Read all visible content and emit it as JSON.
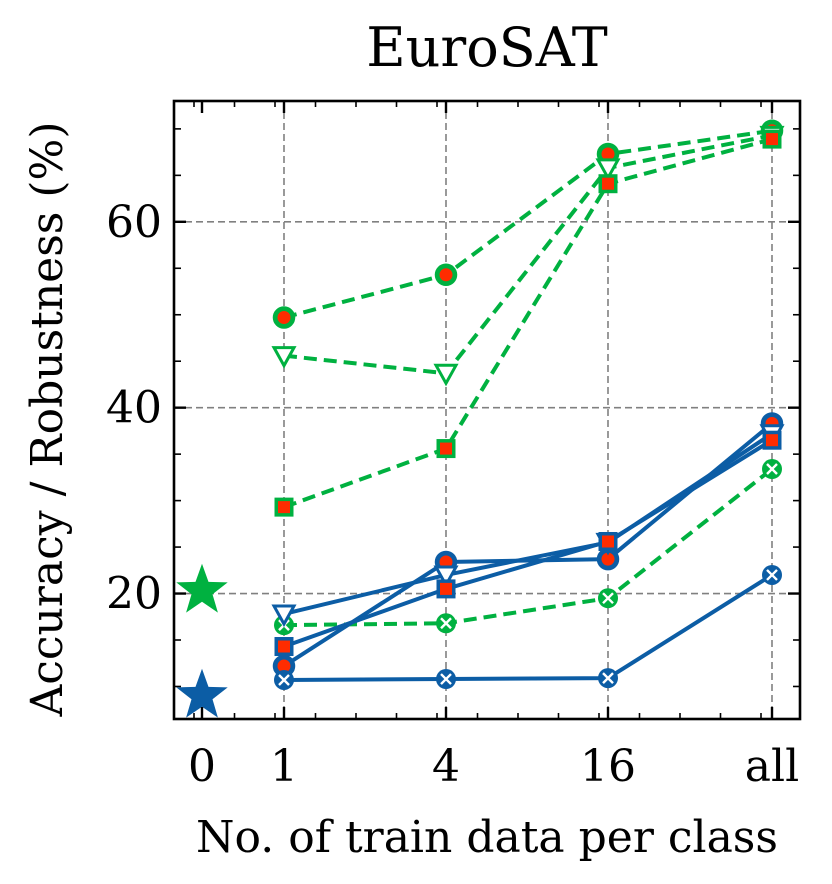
{
  "chart_data": {
    "type": "line",
    "title": "EuroSAT",
    "xlabel": "No. of train data per class",
    "ylabel": "Accuracy / Robustness (%)",
    "categories": [
      "0",
      "1",
      "4",
      "16",
      "all"
    ],
    "ylim": [
      6.5,
      73
    ],
    "yticks": [
      20,
      40,
      60
    ],
    "grid": true,
    "legend": "none",
    "colors": {
      "green": "#00b140",
      "blue": "#0c5da5",
      "red_fill": "#ff2c00"
    },
    "zero_shot": [
      {
        "name": "zero-shot green",
        "x": "0",
        "y": 20.3,
        "marker": "star",
        "color": "#00b140"
      },
      {
        "name": "zero-shot blue",
        "x": "0",
        "y": 9.0,
        "marker": "star",
        "color": "#0c5da5"
      }
    ],
    "series": [
      {
        "name": "green circle",
        "group": "green",
        "linestyle": "dashed",
        "marker": "circle",
        "x": [
          "1",
          "4",
          "16",
          "all"
        ],
        "values": [
          49.7,
          54.3,
          67.3,
          69.8
        ]
      },
      {
        "name": "green triangle",
        "group": "green",
        "linestyle": "dashed",
        "marker": "triangle",
        "x": [
          "1",
          "4",
          "16",
          "all"
        ],
        "values": [
          45.6,
          43.7,
          65.8,
          69.3
        ]
      },
      {
        "name": "green square",
        "group": "green",
        "linestyle": "dashed",
        "marker": "square",
        "x": [
          "1",
          "4",
          "16",
          "all"
        ],
        "values": [
          29.3,
          35.6,
          64.1,
          68.9
        ]
      },
      {
        "name": "green cross",
        "group": "green",
        "linestyle": "dashed",
        "marker": "xcircle",
        "x": [
          "1",
          "4",
          "16",
          "all"
        ],
        "values": [
          16.6,
          16.8,
          19.5,
          33.4
        ]
      },
      {
        "name": "blue circle",
        "group": "blue",
        "linestyle": "solid",
        "marker": "circle",
        "x": [
          "1",
          "4",
          "16",
          "all"
        ],
        "values": [
          12.2,
          23.4,
          23.7,
          38.3
        ]
      },
      {
        "name": "blue triangle",
        "group": "blue",
        "linestyle": "solid",
        "marker": "triangle",
        "x": [
          "1",
          "4",
          "16",
          "all"
        ],
        "values": [
          17.8,
          22.0,
          25.5,
          37.2
        ]
      },
      {
        "name": "blue square",
        "group": "blue",
        "linestyle": "solid",
        "marker": "square",
        "x": [
          "1",
          "4",
          "16",
          "all"
        ],
        "values": [
          14.3,
          20.5,
          25.6,
          36.5
        ]
      },
      {
        "name": "blue cross",
        "group": "blue",
        "linestyle": "solid",
        "marker": "xcircle",
        "x": [
          "1",
          "4",
          "16",
          "all"
        ],
        "values": [
          10.7,
          10.8,
          10.9,
          22.0
        ]
      }
    ]
  }
}
